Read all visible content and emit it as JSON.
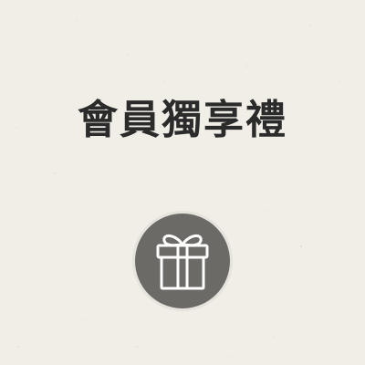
{
  "title": "會員獨享禮",
  "icon": {
    "name": "gift-icon",
    "circle_color": "#6b6a67",
    "ring_color": "#e6e3dd",
    "stroke_color": "#ffffff"
  },
  "colors": {
    "background": "#f1eee7",
    "text": "#2b2b2b"
  }
}
